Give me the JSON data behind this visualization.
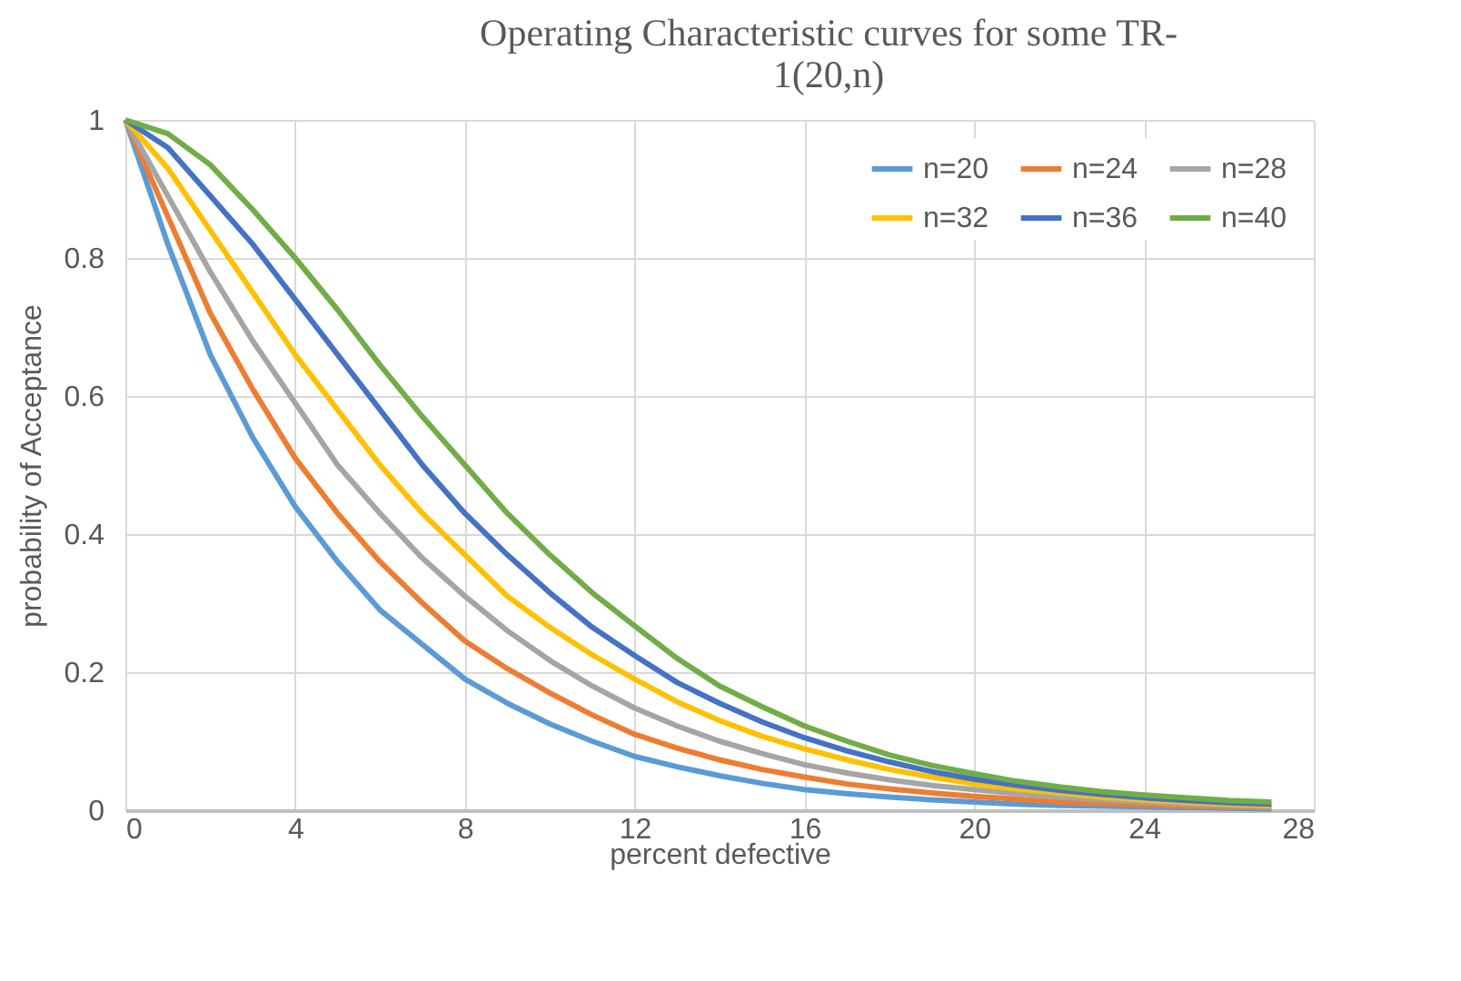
{
  "chart_data": {
    "type": "line",
    "title": "Operating Characteristic curves for some TR-1(20,n)",
    "xlabel": "percent defective",
    "ylabel": "probability of Acceptance",
    "x": [
      0,
      1,
      2,
      3,
      4,
      5,
      6,
      7,
      8,
      9,
      10,
      11,
      12,
      13,
      14,
      15,
      16,
      17,
      18,
      19,
      20,
      21,
      22,
      23,
      24,
      25,
      26,
      27
    ],
    "series": [
      {
        "name": "n=20",
        "color": "#5b9bd5",
        "values": [
          1,
          0.82,
          0.66,
          0.54,
          0.44,
          0.36,
          0.29,
          0.24,
          0.19,
          0.155,
          0.125,
          0.1,
          0.078,
          0.063,
          0.05,
          0.039,
          0.03,
          0.024,
          0.019,
          0.015,
          0.012,
          0.009,
          0.007,
          0.006,
          0.005,
          0.004,
          0.003,
          0.002
        ]
      },
      {
        "name": "n=24",
        "color": "#ed7d31",
        "values": [
          1,
          0.86,
          0.72,
          0.61,
          0.51,
          0.43,
          0.36,
          0.3,
          0.245,
          0.205,
          0.17,
          0.138,
          0.11,
          0.09,
          0.073,
          0.059,
          0.048,
          0.038,
          0.031,
          0.025,
          0.02,
          0.016,
          0.012,
          0.01,
          0.008,
          0.006,
          0.005,
          0.004
        ]
      },
      {
        "name": "n=28",
        "color": "#a5a5a5",
        "values": [
          1,
          0.89,
          0.78,
          0.68,
          0.59,
          0.5,
          0.43,
          0.365,
          0.31,
          0.26,
          0.217,
          0.18,
          0.148,
          0.122,
          0.1,
          0.082,
          0.066,
          0.054,
          0.044,
          0.036,
          0.03,
          0.024,
          0.019,
          0.015,
          0.012,
          0.009,
          0.007,
          0.005
        ]
      },
      {
        "name": "n=32",
        "color": "#ffc000",
        "values": [
          1,
          0.93,
          0.84,
          0.75,
          0.66,
          0.58,
          0.5,
          0.43,
          0.37,
          0.31,
          0.265,
          0.225,
          0.19,
          0.157,
          0.13,
          0.107,
          0.089,
          0.073,
          0.059,
          0.048,
          0.038,
          0.031,
          0.025,
          0.019,
          0.015,
          0.012,
          0.009,
          0.007
        ]
      },
      {
        "name": "n=36",
        "color": "#4472c4",
        "values": [
          1,
          0.96,
          0.89,
          0.82,
          0.74,
          0.66,
          0.58,
          0.5,
          0.43,
          0.37,
          0.315,
          0.265,
          0.224,
          0.185,
          0.155,
          0.128,
          0.105,
          0.086,
          0.07,
          0.056,
          0.045,
          0.036,
          0.029,
          0.023,
          0.018,
          0.014,
          0.011,
          0.009
        ]
      },
      {
        "name": "n=40",
        "color": "#70ad47",
        "values": [
          1,
          0.98,
          0.935,
          0.87,
          0.8,
          0.725,
          0.645,
          0.57,
          0.5,
          0.43,
          0.37,
          0.315,
          0.267,
          0.22,
          0.18,
          0.15,
          0.122,
          0.1,
          0.08,
          0.065,
          0.053,
          0.042,
          0.034,
          0.027,
          0.022,
          0.018,
          0.014,
          0.012
        ]
      }
    ],
    "xlim": [
      0,
      28
    ],
    "xticks": [
      0,
      4,
      8,
      12,
      16,
      20,
      24,
      28
    ],
    "ylim": [
      0,
      1
    ],
    "yticks": [
      0,
      0.2,
      0.4,
      0.6,
      0.8,
      1
    ],
    "grid": true,
    "legend": "top right",
    "line_style": "solid",
    "marker": "none"
  }
}
